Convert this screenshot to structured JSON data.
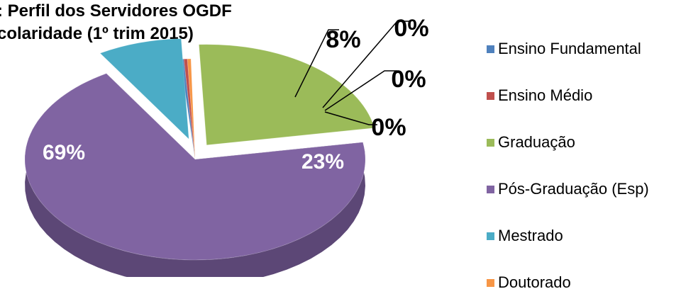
{
  "chart_data": {
    "type": "pie",
    "three_d": true,
    "exploded": true,
    "title_lines": [
      ": Perfil dos Servidores OGDF",
      "colaridade (1º trim 2015)"
    ],
    "legend_position": "right",
    "slices": [
      {
        "name": "Ensino Fundamental",
        "value": 0,
        "label": "0%",
        "color": "#4F81BD",
        "side": "#385D8A"
      },
      {
        "name": "Ensino Médio",
        "value": 0,
        "label": "0%",
        "color": "#C0504D",
        "side": "#8C3836"
      },
      {
        "name": "Graduação",
        "value": 23,
        "label": "23%",
        "color": "#9BBB59",
        "side": "#4F6228"
      },
      {
        "name": "Pós-Graduação (Esp)",
        "value": 69,
        "label": "69%",
        "color": "#8064A2",
        "side": "#5C4776"
      },
      {
        "name": "Mestrado",
        "value": 8,
        "label": "8%",
        "color": "#4BACC6",
        "side": "#31859C"
      },
      {
        "name": "Doutorado",
        "value": 0,
        "label": "0%",
        "color": "#F79646",
        "side": "#B65708"
      }
    ]
  }
}
